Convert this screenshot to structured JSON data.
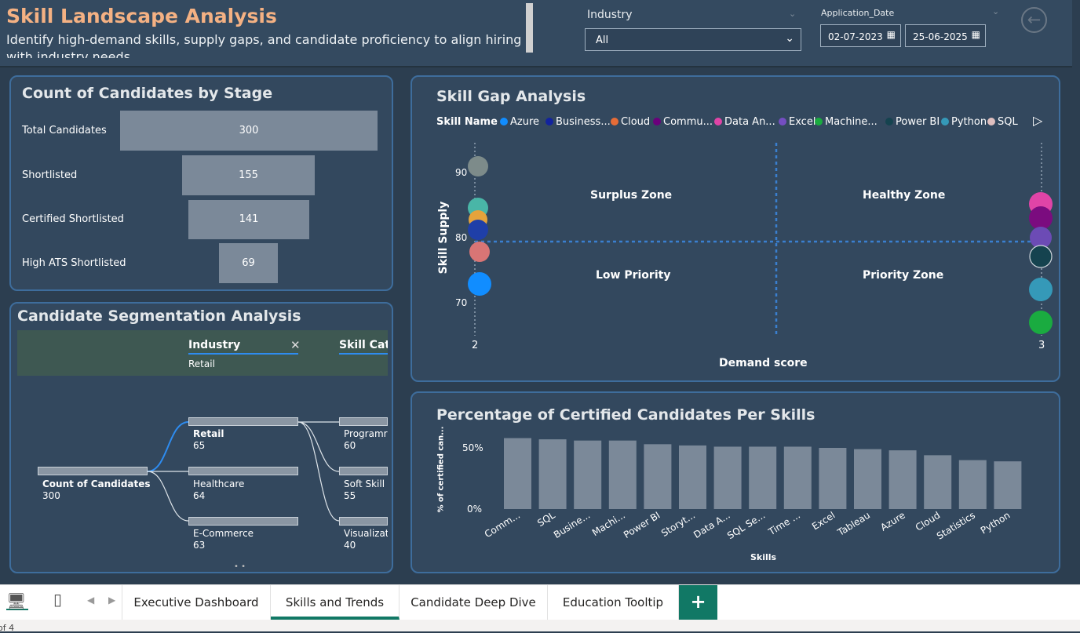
{
  "header": {
    "title": "Skill Landscape Analysis",
    "subtitle": "Identify high-demand skills, supply gaps, and candidate proficiency to align hiring with industry needs"
  },
  "filters": {
    "industry_label": "Industry",
    "industry_value": "All",
    "date_label": "Application_Date",
    "date_start": "02-07-2023",
    "date_end": "25-06-2025"
  },
  "funnel": {
    "title": "Count of Candidates by Stage",
    "stages": [
      {
        "label": "Total Candidates",
        "value": "300"
      },
      {
        "label": "Shortlisted",
        "value": "155"
      },
      {
        "label": "Certified Shortlisted",
        "value": "141"
      },
      {
        "label": "High ATS Shortlisted",
        "value": "69"
      }
    ]
  },
  "segmentation": {
    "title": "Candidate Segmentation Analysis",
    "col1_header": "Industry",
    "col1_selected": "Retail",
    "col2_header": "Skill Cate",
    "root": {
      "label": "Count of Candidates",
      "value": "300"
    },
    "level1": [
      {
        "label": "Retail",
        "value": "65"
      },
      {
        "label": "Healthcare",
        "value": "64"
      },
      {
        "label": "E-Commerce",
        "value": "63"
      }
    ],
    "level2": [
      {
        "label": "Programr",
        "value": "60"
      },
      {
        "label": "Soft Skill",
        "value": "55"
      },
      {
        "label": "Visualizat",
        "value": "40"
      }
    ]
  },
  "skill_gap": {
    "title": "Skill Gap Analysis",
    "legend_title": "Skill Name",
    "legend": [
      {
        "name": "Azure",
        "color": "#118dff"
      },
      {
        "name": "Business...",
        "color": "#12239e"
      },
      {
        "name": "Cloud",
        "color": "#e66c37"
      },
      {
        "name": "Commu...",
        "color": "#6b007b"
      },
      {
        "name": "Data An...",
        "color": "#e044a7"
      },
      {
        "name": "Excel",
        "color": "#744ec2"
      },
      {
        "name": "Machine...",
        "color": "#1aab40"
      },
      {
        "name": "Power BI",
        "color": "#15434f"
      },
      {
        "name": "Python",
        "color": "#3599b8"
      },
      {
        "name": "SQL",
        "color": "#dfbfbf"
      }
    ],
    "zones": {
      "top_left": "Surplus Zone",
      "top_right": "Healthy Zone",
      "bottom_left": "Low Priority",
      "bottom_right": "Priority Zone"
    },
    "x_label": "Demand score",
    "y_label": "Skill Supply",
    "x_ticks": [
      "2",
      "3"
    ],
    "y_ticks": [
      "90",
      "80",
      "70"
    ]
  },
  "certified": {
    "title": "Percentage of Certified Candidates Per Skills",
    "x_label": "Skills",
    "y_label": "% of certified can...",
    "y_ticks": [
      "50%",
      "0%"
    ]
  },
  "chart_data": {
    "type": "bar",
    "title": "Percentage of Certified Candidates Per Skills",
    "xlabel": "Skills",
    "ylabel": "% of certified can...",
    "categories": [
      "Comm...",
      "SQL",
      "Busine...",
      "Machi...",
      "Power BI",
      "Storyt...",
      "Data A...",
      "SQL Se...",
      "Time ...",
      "Excel",
      "Tableau",
      "Azure",
      "Cloud",
      "Statistics",
      "Python"
    ],
    "values": [
      58,
      57,
      56,
      56,
      53,
      52,
      51,
      51,
      51,
      50,
      49,
      48,
      44,
      40,
      39
    ],
    "ylim": [
      0,
      100
    ]
  },
  "tabs": {
    "items": [
      "Executive Dashboard",
      "Skills and Trends",
      "Candidate Deep Dive",
      "Education Tooltip"
    ],
    "add": "+"
  },
  "status": {
    "page": "of 4"
  }
}
